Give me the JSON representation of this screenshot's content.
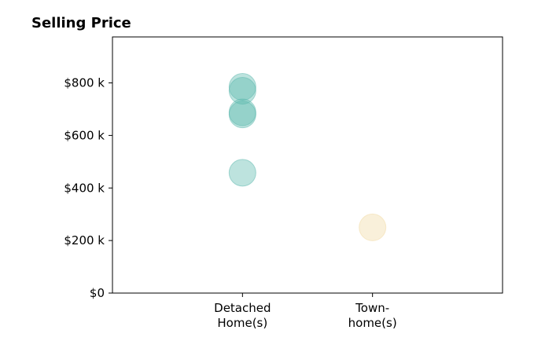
{
  "chart_data": {
    "type": "scatter",
    "title": "Selling Price",
    "xlabel": "",
    "ylabel": "",
    "categories": [
      {
        "lines": [
          "Detached",
          "Home(s)"
        ]
      },
      {
        "lines": [
          "Town-",
          "home(s)"
        ]
      }
    ],
    "x_range": [
      0,
      3
    ],
    "category_positions": [
      1,
      2
    ],
    "ylim": [
      0,
      975000
    ],
    "yticks": [
      {
        "value": 0,
        "label": "$0"
      },
      {
        "value": 200000,
        "label": "$200 k"
      },
      {
        "value": 400000,
        "label": "$400 k"
      },
      {
        "value": 600000,
        "label": "$600 k"
      },
      {
        "value": 800000,
        "label": "$800 k"
      }
    ],
    "grid": false,
    "series": [
      {
        "category": "Detached Home(s)",
        "color": "#5bb8ad",
        "x": [
          1,
          1,
          1,
          1,
          1
        ],
        "values": [
          785000,
          770000,
          688000,
          680000,
          458000
        ]
      },
      {
        "category": "Town-home(s)",
        "color": "#f1d9a2",
        "x": [
          2
        ],
        "values": [
          250000
        ]
      }
    ]
  }
}
